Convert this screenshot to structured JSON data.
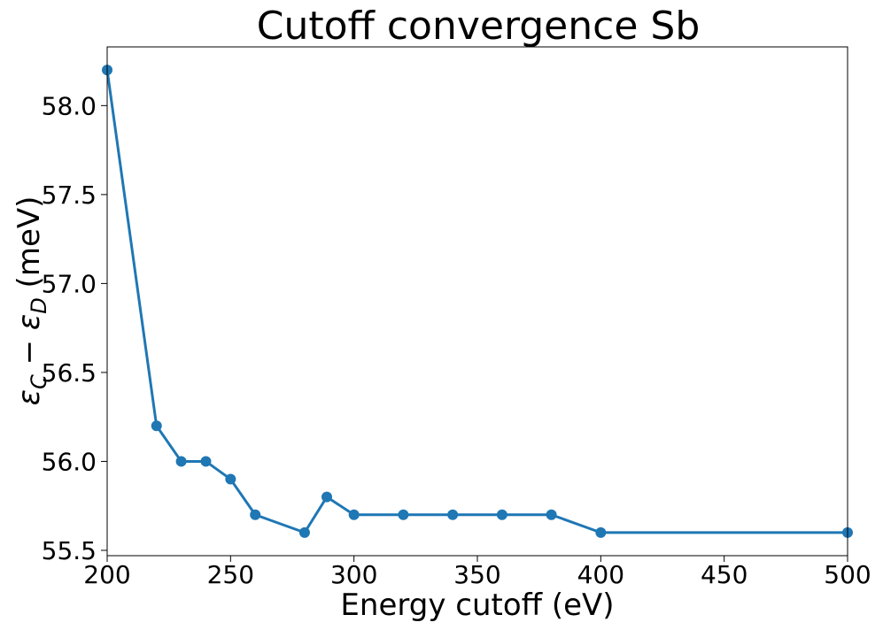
{
  "chart_data": {
    "type": "line",
    "title": "Cutoff convergence Sb",
    "xlabel": "Energy cutoff (eV)",
    "ylabel_parts": {
      "eps1": "ε",
      "sub1": "C",
      "minus": " − ",
      "eps2": "ε",
      "sub2": "D",
      "unit": " (meV)"
    },
    "xlim": [
      200,
      500
    ],
    "ylim": [
      55.47,
      58.33
    ],
    "x_ticks": [
      200,
      250,
      300,
      350,
      400,
      450,
      500
    ],
    "x_tick_labels": [
      "200",
      "250",
      "300",
      "350",
      "400",
      "450",
      "500"
    ],
    "y_ticks": [
      55.5,
      56.0,
      56.5,
      57.0,
      57.5,
      58.0
    ],
    "y_tick_labels": [
      "55.5",
      "56.0",
      "56.5",
      "57.0",
      "57.5",
      "58.0"
    ],
    "grid": false,
    "color": "#1f77b4",
    "series": [
      {
        "x": [
          200,
          220,
          230,
          240,
          250,
          260,
          280,
          289,
          300,
          320,
          340,
          360,
          380,
          400,
          500
        ],
        "y": [
          58.2,
          56.2,
          56.0,
          56.0,
          55.9,
          55.7,
          55.6,
          55.8,
          55.7,
          55.7,
          55.7,
          55.7,
          55.7,
          55.6,
          55.6
        ]
      }
    ]
  }
}
